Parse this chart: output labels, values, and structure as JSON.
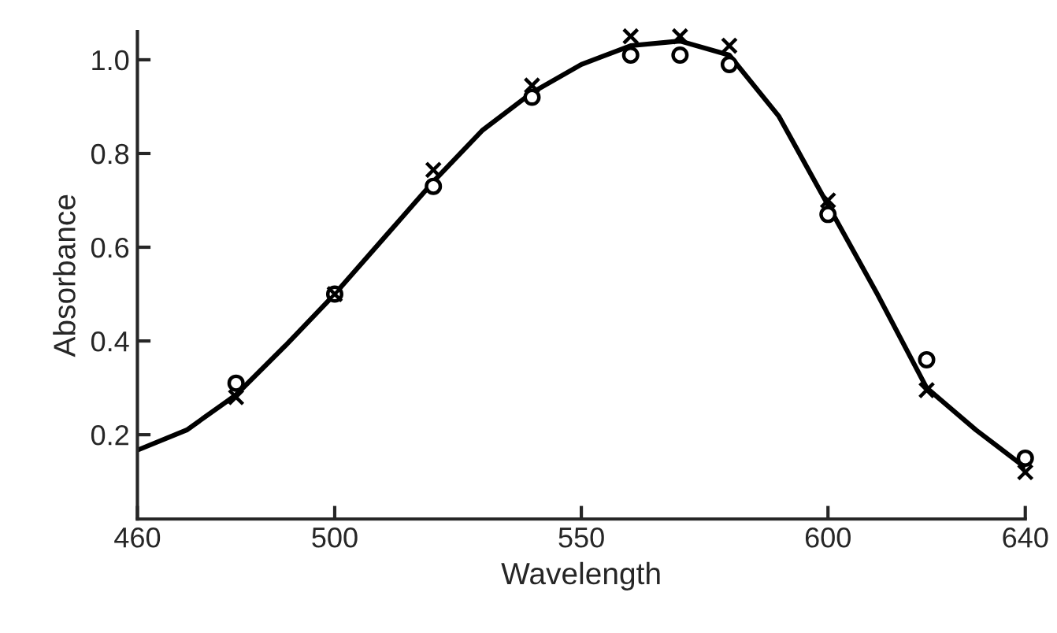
{
  "chart_data": {
    "type": "line",
    "xlabel": "Wavelength",
    "ylabel": "Absorbance",
    "xlim": [
      460,
      640
    ],
    "xticks": [
      460,
      500,
      550,
      600,
      640
    ],
    "ylim": [
      0.02,
      1.06
    ],
    "yticks": [
      {
        "value": 0.2,
        "label": "0.2"
      },
      {
        "value": 0.4,
        "label": "0.4"
      },
      {
        "value": 0.6,
        "label": "0.6"
      },
      {
        "value": 0.8,
        "label": "0.8"
      },
      {
        "value": 1.0,
        "label": "1.0"
      }
    ],
    "grid": false,
    "legend": false,
    "series": [
      {
        "color": "#000000",
        "marker": "none",
        "line_style": "solid",
        "x": [
          460,
          470,
          480,
          490,
          500,
          510,
          520,
          530,
          540,
          550,
          560,
          570,
          580,
          590,
          600,
          610,
          620,
          630,
          640
        ],
        "values": [
          0.167,
          0.21,
          0.285,
          0.39,
          0.5,
          0.62,
          0.74,
          0.85,
          0.93,
          0.99,
          1.03,
          1.04,
          1.01,
          0.88,
          0.69,
          0.5,
          0.3,
          0.21,
          0.13
        ]
      },
      {
        "type": "scatter",
        "color": "#000000",
        "marker": "circle",
        "x": [
          480,
          500,
          520,
          540,
          560,
          570,
          580,
          600,
          620,
          640
        ],
        "values": [
          0.31,
          0.5,
          0.73,
          0.92,
          1.01,
          1.01,
          0.99,
          0.67,
          0.36,
          0.15
        ]
      },
      {
        "type": "scatter",
        "color": "#000000",
        "marker": "cross",
        "x": [
          480,
          500,
          520,
          540,
          560,
          570,
          580,
          600,
          620,
          640
        ],
        "values": [
          0.28,
          0.5,
          0.765,
          0.945,
          1.05,
          1.05,
          1.03,
          0.7,
          0.295,
          0.12
        ]
      }
    ]
  }
}
